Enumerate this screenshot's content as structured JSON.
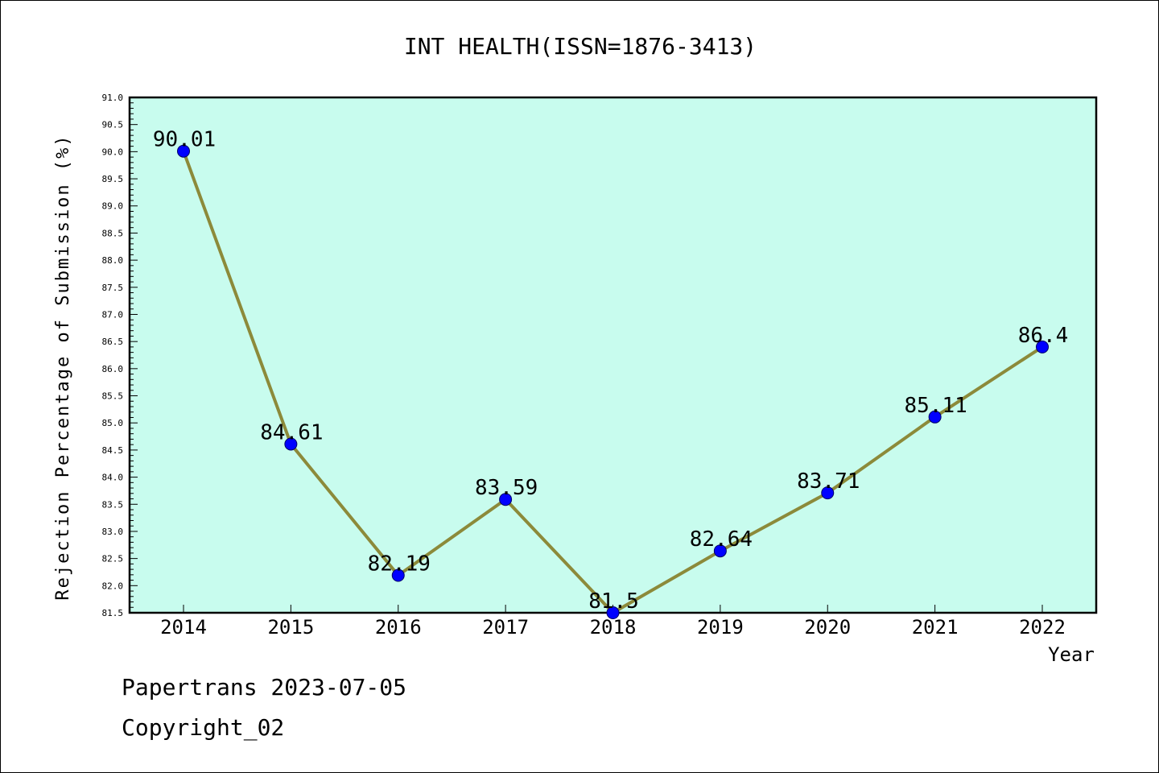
{
  "chart_data": {
    "type": "line",
    "title": "INT HEALTH(ISSN=1876-3413)",
    "xlabel": "Year",
    "ylabel": "Rejection Percentage of Submission (%)",
    "categories": [
      "2014",
      "2015",
      "2016",
      "2017",
      "2018",
      "2019",
      "2020",
      "2021",
      "2022"
    ],
    "values": [
      90.01,
      84.61,
      82.19,
      83.59,
      81.5,
      82.64,
      83.71,
      85.11,
      86.4
    ],
    "data_labels": [
      "90.01",
      "84.61",
      "82.19",
      "83.59",
      "81.5",
      "82.64",
      "83.71",
      "85.11",
      "86.4"
    ],
    "ylim": [
      81.5,
      91.0
    ],
    "ytick_step": 0.5,
    "grid": false,
    "colors": {
      "plot_bg": "#c8fcee",
      "line": "#8c8a3a",
      "marker": "#0000ff"
    }
  },
  "footer": {
    "line1": "Papertrans 2023-07-05",
    "line2": "Copyright_02"
  }
}
